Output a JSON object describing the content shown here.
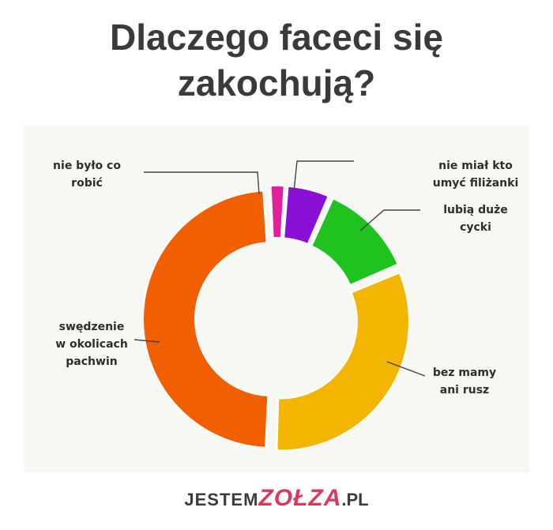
{
  "chart_data": {
    "type": "pie",
    "style": "donut",
    "title": "Dlaczego faceci się zakochują?",
    "title_lines": [
      "Dlaczego faceci się",
      "zakochują?"
    ],
    "legend": "none (direct labels)",
    "slices": [
      {
        "label_lines": [
          "nie miał kto",
          "umyć filiżanki"
        ],
        "label": "nie miał kto umyć filiżanki",
        "value": 5.5,
        "color": "#8a10d8"
      },
      {
        "label_lines": [
          "lubią duże",
          "cycki"
        ],
        "label": "lubią duże cycki",
        "value": 12,
        "color": "#1fc21f"
      },
      {
        "label_lines": [
          "bez mamy",
          "ani rusz"
        ],
        "label": "bez mamy ani rusz",
        "value": 32,
        "color": "#f2b600"
      },
      {
        "label_lines": [
          "swędzenie",
          "w okolicach",
          "pachwin"
        ],
        "label": "swędzenie w okolicach pachwin",
        "value": 48.5,
        "color": "#f06000"
      },
      {
        "label_lines": [
          "nie było co",
          "robić"
        ],
        "label": "nie było co robić",
        "value": 2,
        "color": "#e0219c"
      }
    ]
  },
  "footer": {
    "brand_part1": "JESTEM",
    "brand_part2": "ZOŁZA",
    "brand_part3": ".PL"
  }
}
